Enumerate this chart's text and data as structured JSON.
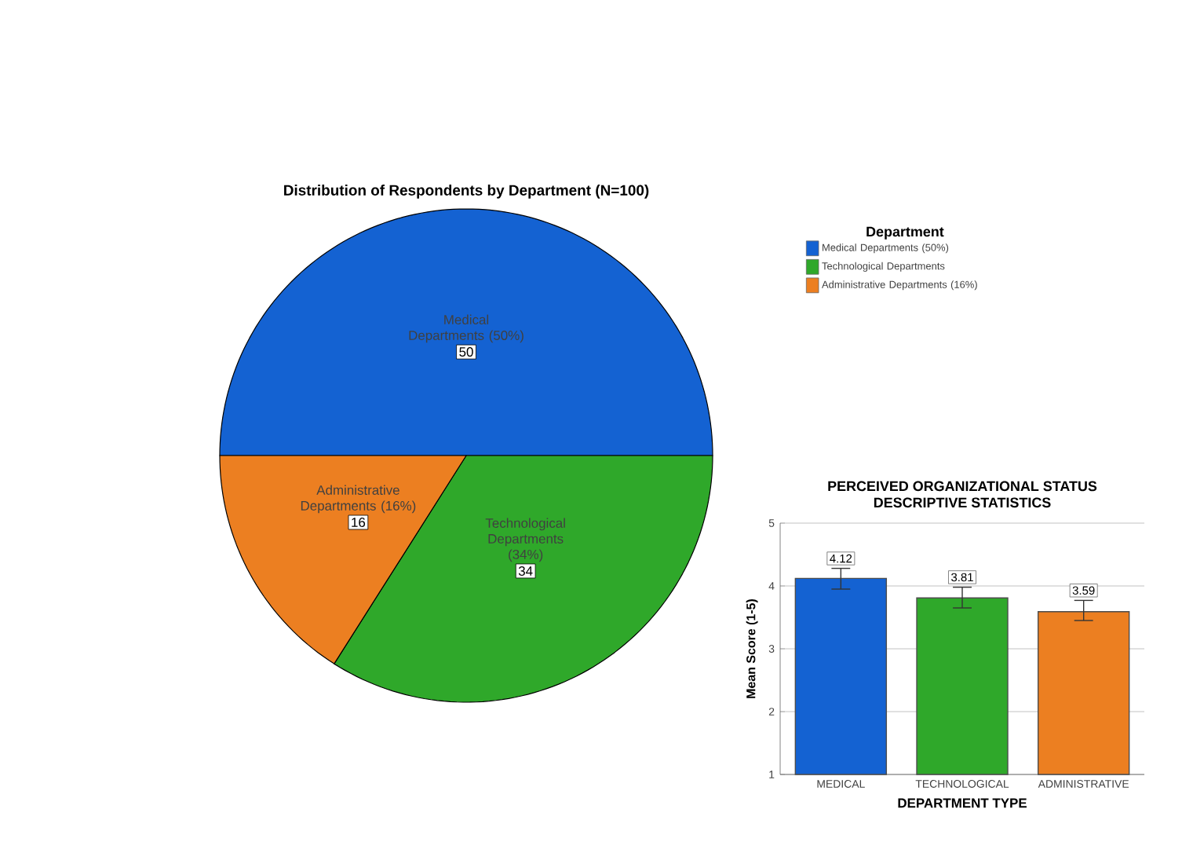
{
  "chart_data": [
    {
      "type": "pie",
      "title": "Distribution of Respondents by Department (N=100)",
      "legend_title": "Department",
      "categories": [
        "Medical Departments (50%)",
        "Technological Departments",
        "Administrative Departments (16%)"
      ],
      "values": [
        50,
        34,
        16
      ],
      "colors": [
        "#1462d2",
        "#2fa82a",
        "#ec7f21"
      ],
      "value_labels": [
        "50",
        "34",
        "16"
      ],
      "annotations": [
        {
          "text": "(34%)",
          "x": "Technological Departments"
        }
      ],
      "legend": "top right"
    },
    {
      "type": "bar",
      "title": "PERCEIVED ORGANIZATIONAL STATUS",
      "subtitle": "DESCRIPTIVE STATISTICS",
      "xlabel": "DEPARTMENT TYPE",
      "ylabel": "Mean Score (1-5)",
      "categories": [
        "MEDICAL",
        "TECHNOLOGICAL",
        "ADMINISTRATIVE"
      ],
      "values": [
        4.12,
        3.81,
        3.59
      ],
      "errors": [
        [
          3.95,
          4.28
        ],
        [
          3.65,
          3.98
        ],
        [
          3.45,
          3.77
        ]
      ],
      "colors": [
        "#1462d2",
        "#2fa82a",
        "#ec7f21"
      ],
      "ylim": [
        1,
        5
      ],
      "yticks": [
        1,
        2,
        3,
        4,
        5
      ],
      "grid": "y",
      "data_labels": true
    }
  ]
}
